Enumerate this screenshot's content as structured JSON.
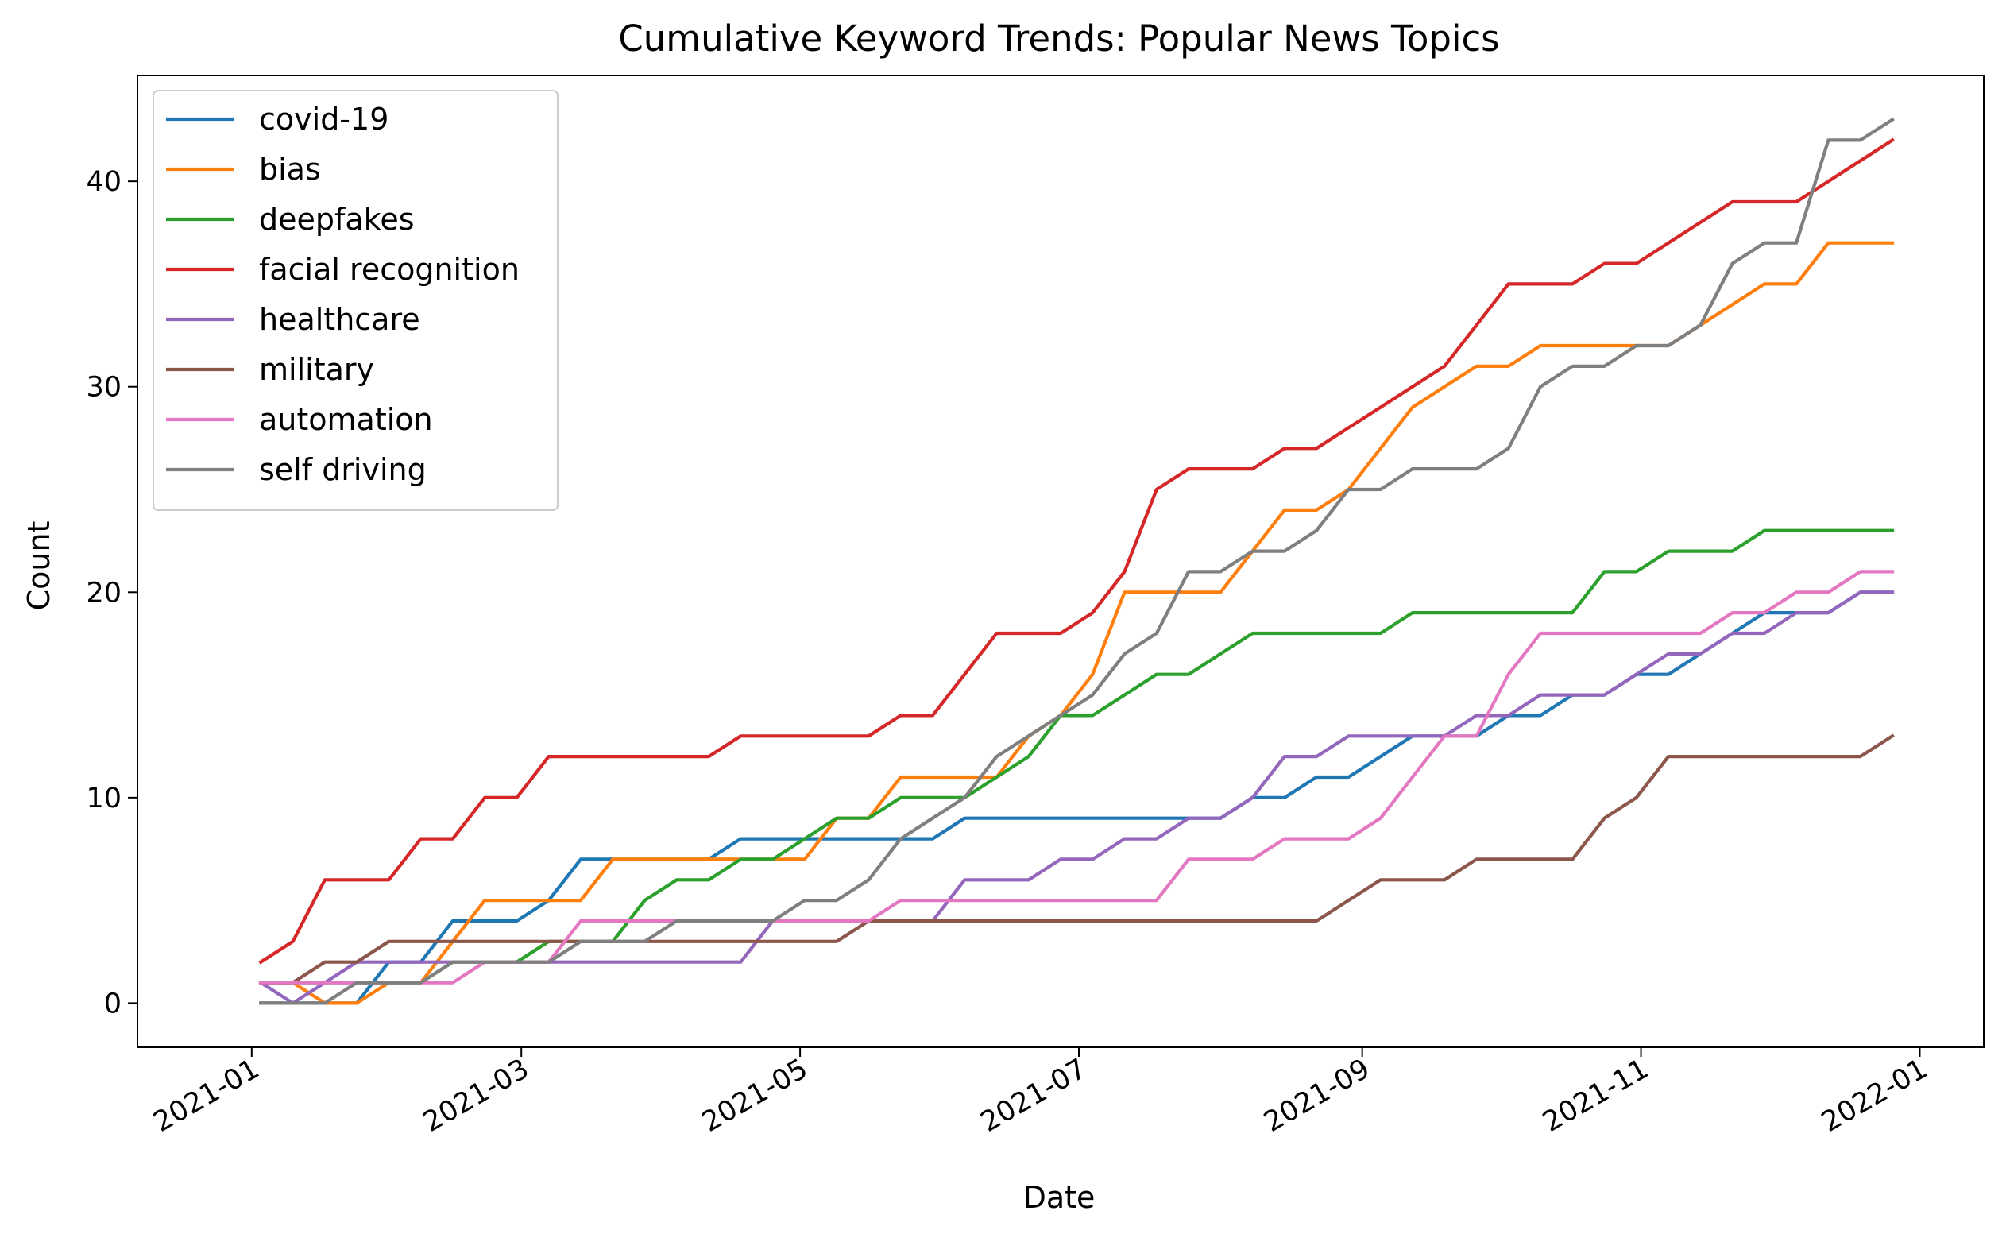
{
  "chart_data": {
    "type": "line",
    "title": "Cumulative Keyword Trends: Popular News Topics",
    "xlabel": "Date",
    "ylabel": "Count",
    "x_axis": "date",
    "xlim": [
      "2020-12-07",
      "2022-01-15"
    ],
    "ylim": [
      -2.15,
      45.15
    ],
    "x_ticks": [
      "2021-01",
      "2021-03",
      "2021-05",
      "2021-07",
      "2021-09",
      "2021-11",
      "2022-01"
    ],
    "y_ticks": [
      0,
      10,
      20,
      30,
      40
    ],
    "grid": false,
    "legend_position": "upper left",
    "x": [
      "2021-01-03",
      "2021-01-10",
      "2021-01-17",
      "2021-01-24",
      "2021-01-31",
      "2021-02-07",
      "2021-02-14",
      "2021-02-21",
      "2021-02-28",
      "2021-03-07",
      "2021-03-14",
      "2021-03-21",
      "2021-03-28",
      "2021-04-04",
      "2021-04-11",
      "2021-04-18",
      "2021-04-25",
      "2021-05-02",
      "2021-05-09",
      "2021-05-16",
      "2021-05-23",
      "2021-05-30",
      "2021-06-06",
      "2021-06-13",
      "2021-06-20",
      "2021-06-27",
      "2021-07-04",
      "2021-07-11",
      "2021-07-18",
      "2021-07-25",
      "2021-08-01",
      "2021-08-08",
      "2021-08-15",
      "2021-08-22",
      "2021-08-29",
      "2021-09-05",
      "2021-09-12",
      "2021-09-19",
      "2021-09-26",
      "2021-10-03",
      "2021-10-10",
      "2021-10-17",
      "2021-10-24",
      "2021-10-31",
      "2021-11-07",
      "2021-11-14",
      "2021-11-21",
      "2021-11-28",
      "2021-12-05",
      "2021-12-12",
      "2021-12-19",
      "2021-12-26"
    ],
    "series": [
      {
        "name": "covid-19",
        "color": "#1f77b4",
        "values": [
          0,
          0,
          0,
          0,
          2,
          2,
          4,
          4,
          4,
          5,
          7,
          7,
          7,
          7,
          7,
          8,
          8,
          8,
          8,
          8,
          8,
          8,
          9,
          9,
          9,
          9,
          9,
          9,
          9,
          9,
          9,
          10,
          10,
          11,
          11,
          12,
          13,
          13,
          13,
          14,
          14,
          15,
          15,
          16,
          16,
          17,
          18,
          19,
          19,
          19,
          20,
          20
        ]
      },
      {
        "name": "bias",
        "color": "#ff7f0e",
        "values": [
          1,
          1,
          0,
          0,
          1,
          1,
          3,
          5,
          5,
          5,
          5,
          7,
          7,
          7,
          7,
          7,
          7,
          7,
          9,
          9,
          11,
          11,
          11,
          11,
          13,
          14,
          16,
          20,
          20,
          20,
          20,
          22,
          24,
          24,
          25,
          27,
          29,
          30,
          31,
          31,
          32,
          32,
          32,
          32,
          32,
          33,
          34,
          35,
          35,
          37,
          37,
          37
        ]
      },
      {
        "name": "deepfakes",
        "color": "#2ca02c",
        "values": [
          1,
          1,
          1,
          1,
          1,
          1,
          2,
          2,
          2,
          3,
          3,
          3,
          5,
          6,
          6,
          7,
          7,
          8,
          9,
          9,
          10,
          10,
          10,
          11,
          12,
          14,
          14,
          15,
          16,
          16,
          17,
          18,
          18,
          18,
          18,
          18,
          19,
          19,
          19,
          19,
          19,
          19,
          21,
          21,
          22,
          22,
          22,
          23,
          23,
          23,
          23,
          23
        ]
      },
      {
        "name": "facial recognition",
        "color": "#d62728",
        "values": [
          2,
          3,
          6,
          6,
          6,
          8,
          8,
          10,
          10,
          12,
          12,
          12,
          12,
          12,
          12,
          13,
          13,
          13,
          13,
          13,
          14,
          14,
          16,
          18,
          18,
          18,
          19,
          21,
          25,
          26,
          26,
          26,
          27,
          27,
          28,
          29,
          30,
          31,
          33,
          35,
          35,
          35,
          36,
          36,
          37,
          38,
          39,
          39,
          39,
          40,
          41,
          42
        ]
      },
      {
        "name": "healthcare",
        "color": "#9467bd",
        "values": [
          1,
          0,
          1,
          2,
          2,
          2,
          2,
          2,
          2,
          2,
          2,
          2,
          2,
          2,
          2,
          2,
          4,
          4,
          4,
          4,
          4,
          4,
          6,
          6,
          6,
          7,
          7,
          8,
          8,
          9,
          9,
          10,
          12,
          12,
          13,
          13,
          13,
          13,
          14,
          14,
          15,
          15,
          15,
          16,
          17,
          17,
          18,
          18,
          19,
          19,
          20,
          20
        ]
      },
      {
        "name": "military",
        "color": "#8c564b",
        "values": [
          1,
          1,
          2,
          2,
          3,
          3,
          3,
          3,
          3,
          3,
          3,
          3,
          3,
          3,
          3,
          3,
          3,
          3,
          3,
          4,
          4,
          4,
          4,
          4,
          4,
          4,
          4,
          4,
          4,
          4,
          4,
          4,
          4,
          4,
          5,
          6,
          6,
          6,
          7,
          7,
          7,
          7,
          9,
          10,
          12,
          12,
          12,
          12,
          12,
          12,
          12,
          13
        ]
      },
      {
        "name": "automation",
        "color": "#e377c2",
        "values": [
          1,
          1,
          1,
          1,
          1,
          1,
          1,
          2,
          2,
          2,
          4,
          4,
          4,
          4,
          4,
          4,
          4,
          4,
          4,
          4,
          5,
          5,
          5,
          5,
          5,
          5,
          5,
          5,
          5,
          7,
          7,
          7,
          8,
          8,
          8,
          9,
          11,
          13,
          13,
          16,
          18,
          18,
          18,
          18,
          18,
          18,
          19,
          19,
          20,
          20,
          21,
          21
        ]
      },
      {
        "name": "self driving",
        "color": "#7f7f7f",
        "values": [
          0,
          0,
          0,
          1,
          1,
          1,
          2,
          2,
          2,
          2,
          3,
          3,
          3,
          4,
          4,
          4,
          4,
          5,
          5,
          6,
          8,
          9,
          10,
          12,
          13,
          14,
          15,
          17,
          18,
          21,
          21,
          22,
          22,
          23,
          25,
          25,
          26,
          26,
          26,
          27,
          30,
          31,
          31,
          32,
          32,
          33,
          36,
          37,
          37,
          42,
          42,
          43
        ]
      }
    ]
  }
}
